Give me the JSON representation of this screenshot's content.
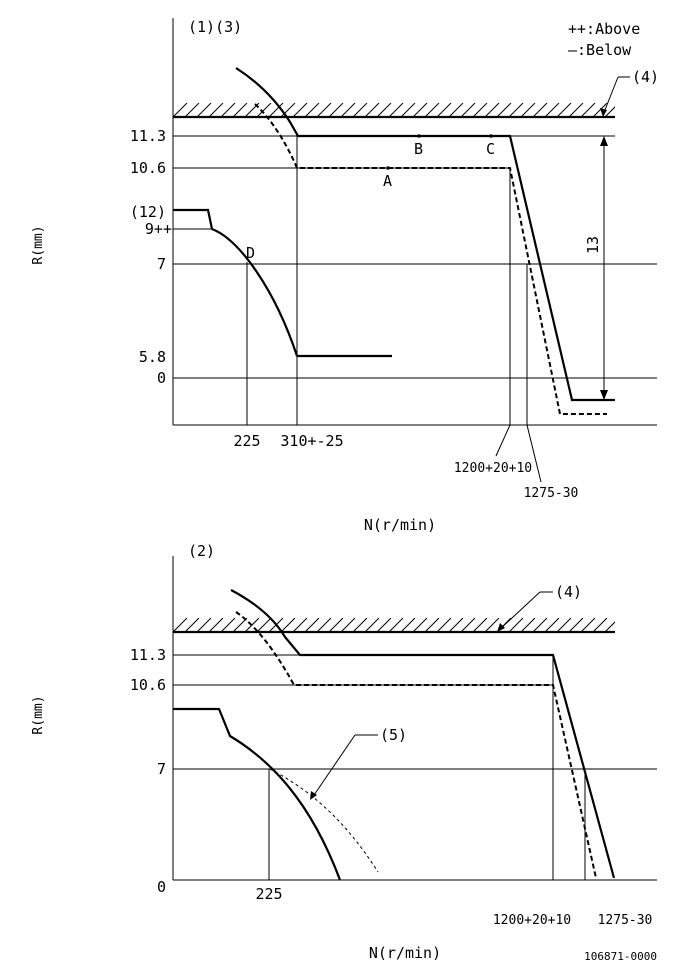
{
  "legend": {
    "above": "++:Above",
    "below": "—:Below"
  },
  "top_chart": {
    "panel_label": "(1)(3)",
    "ref_4": "(4)",
    "ref_12": "(12)",
    "y_axis_label": "R(mm)",
    "x_axis_label": "N(r/min)",
    "y_ticks": [
      "11.3",
      "10.6",
      "9++",
      "7",
      "5.8",
      "0"
    ],
    "x_ticks": [
      "225",
      "310+-25",
      "1200+20+10",
      "1275-30"
    ],
    "points": [
      "A",
      "B",
      "C",
      "D"
    ],
    "dimension": "13"
  },
  "bottom_chart": {
    "panel_label": "(2)",
    "ref_4": "(4)",
    "ref_5": "(5)",
    "y_axis_label": "R(mm)",
    "x_axis_label": "N(r/min)",
    "y_ticks": [
      "11.3",
      "10.6",
      "7",
      "0"
    ],
    "x_ticks": [
      "225",
      "1200+20+10",
      "1275-30"
    ]
  },
  "drawing_number": "106871-0000"
}
